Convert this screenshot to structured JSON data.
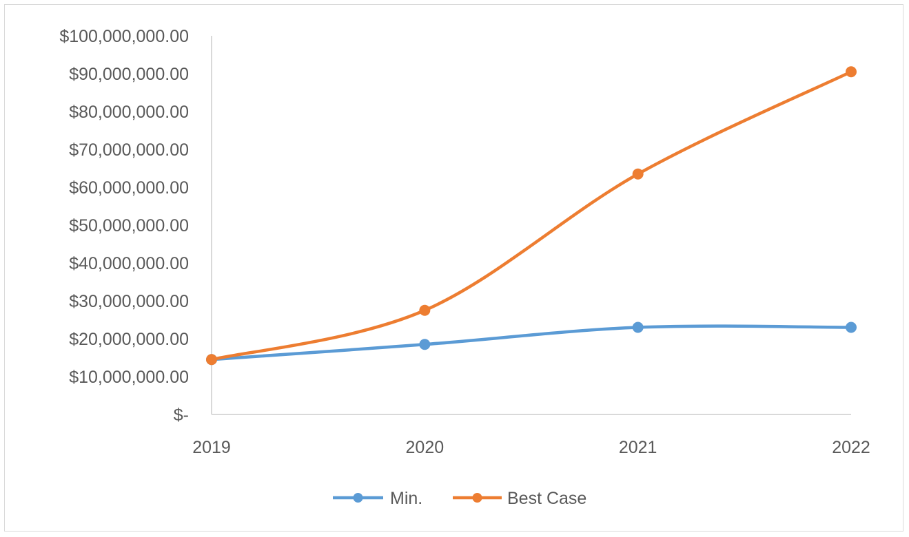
{
  "chart_data": {
    "type": "line",
    "title": "",
    "xlabel": "",
    "ylabel": "",
    "categories": [
      "2019",
      "2020",
      "2021",
      "2022"
    ],
    "ylim": [
      0,
      100000000
    ],
    "y_ticks": [
      "$-",
      "$10,000,000.00",
      "$20,000,000.00",
      "$30,000,000.00",
      "$40,000,000.00",
      "$50,000,000.00",
      "$60,000,000.00",
      "$70,000,000.00",
      "$80,000,000.00",
      "$90,000,000.00",
      "$100,000,000.00"
    ],
    "grid": false,
    "smooth": true,
    "legend_position": "bottom",
    "series": [
      {
        "name": "Min.",
        "color": "#5b9bd5",
        "values": [
          14500000,
          18500000,
          23000000,
          23000000
        ]
      },
      {
        "name": "Best Case",
        "color": "#ed7d31",
        "values": [
          14500000,
          27500000,
          63500000,
          90500000
        ]
      }
    ]
  }
}
